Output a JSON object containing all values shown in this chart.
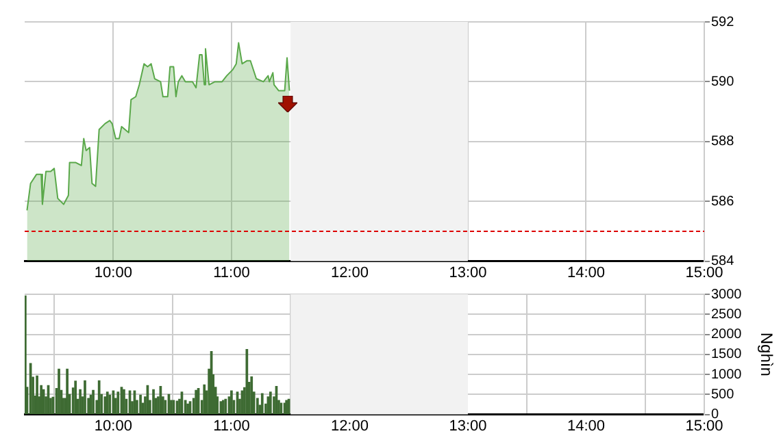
{
  "chart_data": [
    {
      "type": "area",
      "x": [
        9.27,
        9.3,
        9.35,
        9.39,
        9.4,
        9.43,
        9.47,
        9.5,
        9.53,
        9.58,
        9.62,
        9.63,
        9.68,
        9.73,
        9.75,
        9.77,
        9.8,
        9.82,
        9.85,
        9.88,
        9.93,
        9.97,
        9.99,
        10.02,
        10.05,
        10.07,
        10.13,
        10.15,
        10.19,
        10.22,
        10.26,
        10.29,
        10.32,
        10.35,
        10.4,
        10.42,
        10.46,
        10.48,
        10.51,
        10.53,
        10.55,
        10.58,
        10.61,
        10.67,
        10.7,
        10.73,
        10.75,
        10.77,
        10.78,
        10.81,
        10.86,
        10.92,
        10.96,
        11.01,
        11.04,
        11.06,
        11.09,
        11.13,
        11.16,
        11.21,
        11.27,
        11.31,
        11.32,
        11.35,
        11.36,
        11.4,
        11.45,
        11.47,
        11.49
      ],
      "series": [
        {
          "color": "#5aa84a",
          "values": [
            585.7,
            586.6,
            586.9,
            586.9,
            585.9,
            587.0,
            587.0,
            587.1,
            586.1,
            585.9,
            586.2,
            587.3,
            587.3,
            587.2,
            588.1,
            587.7,
            587.8,
            586.6,
            586.5,
            588.4,
            588.6,
            588.7,
            588.6,
            588.1,
            588.1,
            588.5,
            588.3,
            589.4,
            589.5,
            589.9,
            590.6,
            590.5,
            590.6,
            590.1,
            590.0,
            589.5,
            589.5,
            590.5,
            590.5,
            589.5,
            590.0,
            590.2,
            590.0,
            590.0,
            589.8,
            590.9,
            590.9,
            589.9,
            591.1,
            589.9,
            590.0,
            590.0,
            590.2,
            590.4,
            590.6,
            591.3,
            590.6,
            590.7,
            590.7,
            590.1,
            590.0,
            590.2,
            590.0,
            590.3,
            589.9,
            589.7,
            589.7,
            590.8,
            589.7
          ]
        }
      ],
      "xlim": [
        9.25,
        15
      ],
      "xticks": [
        {
          "value": 10,
          "label": "10:00"
        },
        {
          "value": 11,
          "label": "11:00"
        },
        {
          "value": 12,
          "label": "12:00"
        },
        {
          "value": 13,
          "label": "13:00"
        },
        {
          "value": 14,
          "label": "14:00"
        },
        {
          "value": 15,
          "label": "15:00"
        }
      ],
      "ylim": [
        584,
        592
      ],
      "yticks": [
        584,
        586,
        588,
        590,
        592
      ],
      "grid": true,
      "legend": false,
      "ref_lines": [
        {
          "axis": "y",
          "value": 585,
          "color": "#dd0000",
          "line_style": "dashed"
        }
      ],
      "bands": [
        {
          "axis": "x",
          "from": 11.5,
          "to": 13,
          "color": "#f2f2f2"
        }
      ]
    },
    {
      "type": "bar",
      "ylabel": "Nghìn",
      "x": [
        9.255,
        9.27,
        9.3,
        9.32,
        9.34,
        9.355,
        9.375,
        9.39,
        9.41,
        9.43,
        9.45,
        9.47,
        9.49,
        9.52,
        9.54,
        9.56,
        9.575,
        9.595,
        9.61,
        9.63,
        9.66,
        9.68,
        9.7,
        9.72,
        9.74,
        9.76,
        9.79,
        9.81,
        9.83,
        9.86,
        9.88,
        9.9,
        9.93,
        9.95,
        9.97,
        10.0,
        10.02,
        10.04,
        10.07,
        10.09,
        10.11,
        10.14,
        10.16,
        10.18,
        10.2,
        10.23,
        10.25,
        10.27,
        10.29,
        10.31,
        10.34,
        10.36,
        10.38,
        10.4,
        10.42,
        10.44,
        10.47,
        10.49,
        10.51,
        10.54,
        10.56,
        10.58,
        10.61,
        10.63,
        10.65,
        10.68,
        10.7,
        10.72,
        10.75,
        10.77,
        10.79,
        10.81,
        10.83,
        10.845,
        10.865,
        10.88,
        10.91,
        10.93,
        10.95,
        10.98,
        11.0,
        11.02,
        11.05,
        11.07,
        11.09,
        11.11,
        11.13,
        11.15,
        11.17,
        11.19,
        11.22,
        11.24,
        11.26,
        11.29,
        11.31,
        11.33,
        11.36,
        11.38,
        11.4,
        11.42,
        11.45,
        11.465,
        11.485
      ],
      "series": [
        {
          "color": "#3e6b33",
          "values": [
            2960,
            680,
            1270,
            930,
            460,
            960,
            440,
            720,
            620,
            440,
            720,
            400,
            430,
            650,
            1130,
            600,
            400,
            400,
            1130,
            500,
            660,
            830,
            380,
            620,
            440,
            840,
            400,
            480,
            600,
            350,
            840,
            500,
            440,
            560,
            480,
            590,
            400,
            560,
            680,
            620,
            380,
            590,
            320,
            590,
            350,
            480,
            280,
            440,
            720,
            350,
            620,
            400,
            440,
            700,
            440,
            350,
            500,
            350,
            350,
            330,
            380,
            560,
            350,
            260,
            320,
            400,
            600,
            650,
            350,
            740,
            590,
            1130,
            1570,
            990,
            680,
            440,
            320,
            350,
            380,
            440,
            590,
            350,
            560,
            380,
            590,
            670,
            1620,
            800,
            940,
            560,
            400,
            230,
            520,
            260,
            440,
            560,
            440,
            700,
            350,
            280,
            280,
            350,
            380
          ]
        }
      ],
      "xlim": [
        9.25,
        15
      ],
      "xticks": [
        {
          "value": 10,
          "label": "10:00"
        },
        {
          "value": 11,
          "label": "11:00"
        },
        {
          "value": 12,
          "label": "12:00"
        },
        {
          "value": 13,
          "label": "13:00"
        },
        {
          "value": 14,
          "label": "14:00"
        },
        {
          "value": 15,
          "label": "15:00"
        }
      ],
      "ylim": [
        0,
        3000
      ],
      "yticks": [
        0,
        500,
        1000,
        1500,
        2000,
        2500,
        3000
      ],
      "grid": true,
      "legend": false,
      "bands": [
        {
          "axis": "x",
          "from": 11.5,
          "to": 13,
          "color": "#f2f2f2"
        }
      ]
    }
  ]
}
